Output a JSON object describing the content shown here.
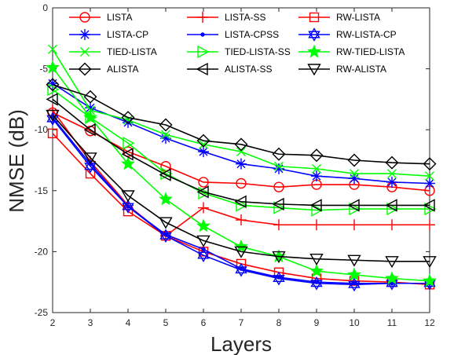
{
  "chart_data": {
    "type": "line",
    "title": "",
    "xlabel": "Layers",
    "ylabel": "NMSE (dB)",
    "x": [
      2,
      3,
      4,
      5,
      6,
      7,
      8,
      9,
      10,
      11,
      12
    ],
    "xlim": [
      2,
      12
    ],
    "ylim": [
      -25,
      0
    ],
    "xticks": [
      "2",
      "3",
      "4",
      "5",
      "6",
      "7",
      "8",
      "9",
      "10",
      "11",
      "12"
    ],
    "yticks": [
      "0",
      "-5",
      "-10",
      "-15",
      "-20",
      "-25"
    ],
    "grid": false,
    "legend_position": "top",
    "series": [
      {
        "name": "LISTA",
        "color": "#ff0000",
        "marker": "circle",
        "values": [
          -8.6,
          -10.1,
          -11.8,
          -13.0,
          -14.3,
          -14.4,
          -14.7,
          -14.5,
          -14.5,
          -14.7,
          -15.0
        ]
      },
      {
        "name": "LISTA-SS",
        "color": "#ff0000",
        "marker": "plus",
        "values": [
          -8.4,
          -12.6,
          -16.2,
          -18.7,
          -16.4,
          -17.4,
          -17.8,
          -17.8,
          -17.8,
          -17.8,
          -17.8
        ]
      },
      {
        "name": "RW-LISTA",
        "color": "#ff0000",
        "marker": "square",
        "values": [
          -10.3,
          -13.6,
          -16.7,
          -18.7,
          -20.0,
          -21.0,
          -21.7,
          -22.2,
          -22.4,
          -22.5,
          -22.7
        ]
      },
      {
        "name": "LISTA-CP",
        "color": "#0000ff",
        "marker": "asterisk",
        "values": [
          -6.2,
          -8.2,
          -9.4,
          -10.7,
          -11.8,
          -12.8,
          -13.2,
          -13.8,
          -14.0,
          -14.3,
          -14.4
        ]
      },
      {
        "name": "LISTA-CPSS",
        "color": "#0000ff",
        "marker": "dot",
        "values": [
          -9.0,
          -12.8,
          -16.3,
          -18.6,
          -19.8,
          -21.4,
          -22.1,
          -22.5,
          -22.6,
          -22.6,
          -22.6
        ]
      },
      {
        "name": "RW-LISTA-CP",
        "color": "#0000ff",
        "marker": "hexagram",
        "values": [
          -9.1,
          -13.0,
          -16.3,
          -18.7,
          -20.3,
          -21.5,
          -22.2,
          -22.6,
          -22.7,
          -22.6,
          -22.6
        ]
      },
      {
        "name": "TIED-LISTA",
        "color": "#00ff00",
        "marker": "x",
        "values": [
          -3.4,
          -8.4,
          -9.2,
          -10.4,
          -11.2,
          -11.8,
          -13.0,
          -13.2,
          -13.6,
          -13.6,
          -13.8
        ]
      },
      {
        "name": "TIED-LISTA-SS",
        "color": "#00ff00",
        "marker": "triangle-right",
        "values": [
          -6.7,
          -9.0,
          -11.1,
          -13.6,
          -15.2,
          -16.2,
          -16.4,
          -16.6,
          -16.5,
          -16.5,
          -16.5
        ]
      },
      {
        "name": "RW-TIED-LISTA",
        "color": "#00ff00",
        "marker": "star",
        "values": [
          -4.9,
          -9.0,
          -12.8,
          -15.7,
          -17.9,
          -19.6,
          -20.4,
          -21.6,
          -21.9,
          -22.2,
          -22.4
        ]
      },
      {
        "name": "ALISTA",
        "color": "#000000",
        "marker": "diamond",
        "values": [
          -6.3,
          -7.3,
          -9.0,
          -9.6,
          -10.9,
          -11.2,
          -12.0,
          -12.1,
          -12.5,
          -12.7,
          -12.8
        ]
      },
      {
        "name": "ALISTA-SS",
        "color": "#000000",
        "marker": "triangle-left",
        "values": [
          -7.5,
          -10.0,
          -12.0,
          -13.7,
          -15.1,
          -15.9,
          -16.1,
          -16.2,
          -16.2,
          -16.2,
          -16.2
        ]
      },
      {
        "name": "RW-ALISTA",
        "color": "#000000",
        "marker": "triangle-down",
        "values": [
          -8.8,
          -12.3,
          -15.4,
          -17.6,
          -19.1,
          -20.0,
          -20.4,
          -20.6,
          -20.7,
          -20.8,
          -20.8
        ]
      }
    ]
  }
}
